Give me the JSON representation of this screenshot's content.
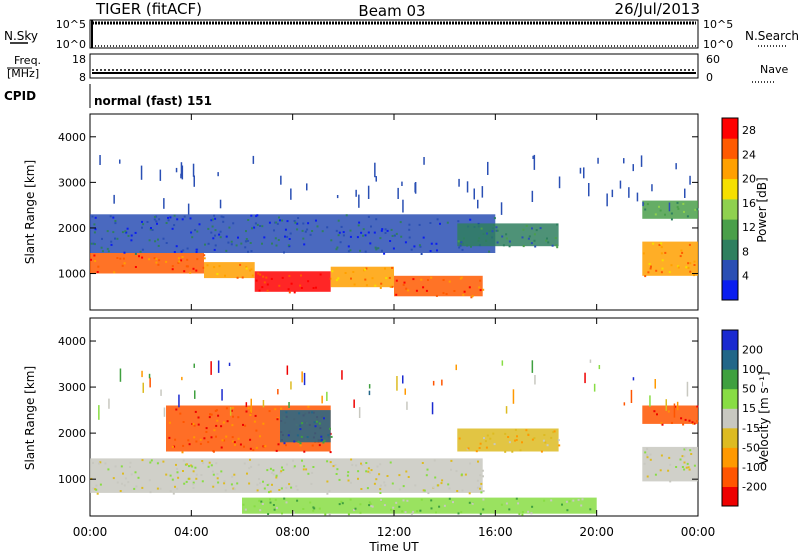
{
  "header": {
    "radar": "TIGER (fitACF)",
    "beam": "Beam 03",
    "date": "26/Jul/2013"
  },
  "noise_panel": {
    "left_label": "N.Sky",
    "right_label": "N.Search",
    "left_ticks": [
      "10^5",
      "10^0"
    ],
    "right_ticks": [
      "10^5",
      "10^0"
    ]
  },
  "freq_panel": {
    "left_label_line1": "Freq.",
    "left_label_line2": "[MHz]",
    "right_label": "Nave",
    "left_ticks": [
      "18",
      "8"
    ],
    "right_ticks": [
      "60",
      "0"
    ]
  },
  "cpid": {
    "label": "CPID",
    "value": "normal (fast) 151"
  },
  "colors": {
    "power_scale": [
      "#0a1ef0",
      "#2a4fb4",
      "#2f7f5f",
      "#4a9f4a",
      "#8fd14f",
      "#f5e000",
      "#ffa000",
      "#ff5a00",
      "#ff0000"
    ],
    "velocity_scale": [
      "#ee0000",
      "#ff5500",
      "#ff9900",
      "#ddbb22",
      "#c8c8c0",
      "#88dd44",
      "#3fa03f",
      "#226688",
      "#1a2ad0"
    ]
  },
  "chart_data": [
    {
      "type": "heatmap",
      "title": "",
      "xlabel": "Time UT",
      "ylabel": "Slant Range [km]",
      "xlim": [
        "00:00",
        "24:00"
      ],
      "ylim": [
        200,
        4500
      ],
      "x_ticks": [
        "00:00",
        "04:00",
        "08:00",
        "12:00",
        "16:00",
        "20:00",
        "00:00"
      ],
      "y_ticks": [
        "1000",
        "2000",
        "3000",
        "4000"
      ],
      "colorbar": {
        "label": "Power [dB]",
        "ticks": [
          "4",
          "8",
          "12",
          "16",
          "20",
          "24",
          "28"
        ],
        "range": [
          0,
          30
        ]
      },
      "regions": [
        {
          "t_start": 0.0,
          "t_end": 4.5,
          "range_low": 1000,
          "range_high": 1450,
          "level": 24
        },
        {
          "t_start": 4.5,
          "t_end": 6.5,
          "range_low": 900,
          "range_high": 1250,
          "level": 20
        },
        {
          "t_start": 6.5,
          "t_end": 9.5,
          "range_low": 600,
          "range_high": 1050,
          "level": 30
        },
        {
          "t_start": 9.5,
          "t_end": 12.0,
          "range_low": 700,
          "range_high": 1150,
          "level": 22
        },
        {
          "t_start": 12.0,
          "t_end": 15.5,
          "range_low": 500,
          "range_high": 950,
          "level": 26
        },
        {
          "t_start": 0.0,
          "t_end": 16.0,
          "range_low": 1450,
          "range_high": 2300,
          "level": 6
        },
        {
          "t_start": 14.5,
          "t_end": 18.5,
          "range_low": 1600,
          "range_high": 2100,
          "level": 8
        },
        {
          "t_start": 21.8,
          "t_end": 24.0,
          "range_low": 950,
          "range_high": 1700,
          "level": 22
        },
        {
          "t_start": 21.8,
          "t_end": 24.0,
          "range_low": 2200,
          "range_high": 2600,
          "level": 12
        }
      ]
    },
    {
      "type": "heatmap",
      "title": "",
      "xlabel": "Time UT",
      "ylabel": "Slant Range [km]",
      "xlim": [
        "00:00",
        "24:00"
      ],
      "ylim": [
        200,
        4500
      ],
      "x_ticks": [
        "00:00",
        "04:00",
        "08:00",
        "12:00",
        "16:00",
        "20:00",
        "00:00"
      ],
      "y_ticks": [
        "1000",
        "2000",
        "3000",
        "4000"
      ],
      "colorbar": {
        "label": "Velocity [m s⁻¹]",
        "ticks": [
          "200",
          "100",
          "50",
          "15",
          "-15",
          "-50",
          "-100",
          "-200"
        ],
        "range": [
          -250,
          250
        ]
      },
      "regions": [
        {
          "t_start": 0.0,
          "t_end": 15.5,
          "range_low": 700,
          "range_high": 1450,
          "level": 0
        },
        {
          "t_start": 3.0,
          "t_end": 9.5,
          "range_low": 1600,
          "range_high": 2600,
          "level": -150
        },
        {
          "t_start": 7.5,
          "t_end": 9.5,
          "range_low": 1800,
          "range_high": 2500,
          "level": 180
        },
        {
          "t_start": 14.5,
          "t_end": 18.5,
          "range_low": 1600,
          "range_high": 2100,
          "level": -40
        },
        {
          "t_start": 21.8,
          "t_end": 24.0,
          "range_low": 950,
          "range_high": 1700,
          "level": 0
        },
        {
          "t_start": 21.8,
          "t_end": 24.0,
          "range_low": 2200,
          "range_high": 2600,
          "level": -180
        },
        {
          "t_start": 6.0,
          "t_end": 20.0,
          "range_low": 250,
          "range_high": 600,
          "level": 40
        }
      ]
    }
  ]
}
